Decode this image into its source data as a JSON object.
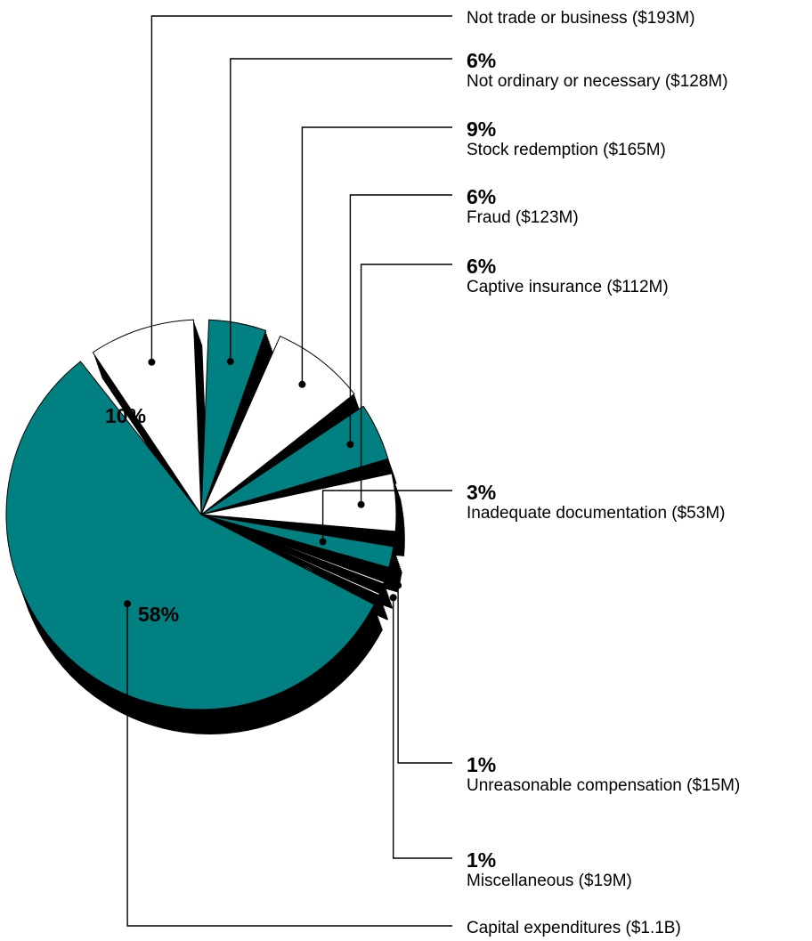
{
  "chart_data": {
    "type": "pie",
    "style": "exploded 3D pie with leader lines",
    "colors": {
      "teal": "#008080",
      "white": "#ffffff",
      "shadow": "#000000"
    },
    "slices": [
      {
        "name": "Capital expenditures ($1.1B)",
        "pct_label": "58%",
        "value": 58,
        "color": "teal"
      },
      {
        "name": "Not trade or business ($193M)",
        "pct_label": "10%",
        "value": 10,
        "color": "white"
      },
      {
        "name": "Not ordinary or necessary ($128M)",
        "pct_label": "6%",
        "value": 6,
        "color": "teal"
      },
      {
        "name": "Stock redemption ($165M)",
        "pct_label": "9%",
        "value": 9,
        "color": "white"
      },
      {
        "name": "Fraud ($123M)",
        "pct_label": "6%",
        "value": 6,
        "color": "teal"
      },
      {
        "name": "Captive insurance ($112M)",
        "pct_label": "6%",
        "value": 6,
        "color": "white"
      },
      {
        "name": "Inadequate documentation ($53M)",
        "pct_label": "3%",
        "value": 3,
        "color": "teal"
      },
      {
        "name": "Unreasonable compensation ($15M)",
        "pct_label": "1%",
        "value": 1,
        "color": "white"
      },
      {
        "name": "Miscellaneous ($19M)",
        "pct_label": "1%",
        "value": 1,
        "color": "white"
      }
    ]
  }
}
